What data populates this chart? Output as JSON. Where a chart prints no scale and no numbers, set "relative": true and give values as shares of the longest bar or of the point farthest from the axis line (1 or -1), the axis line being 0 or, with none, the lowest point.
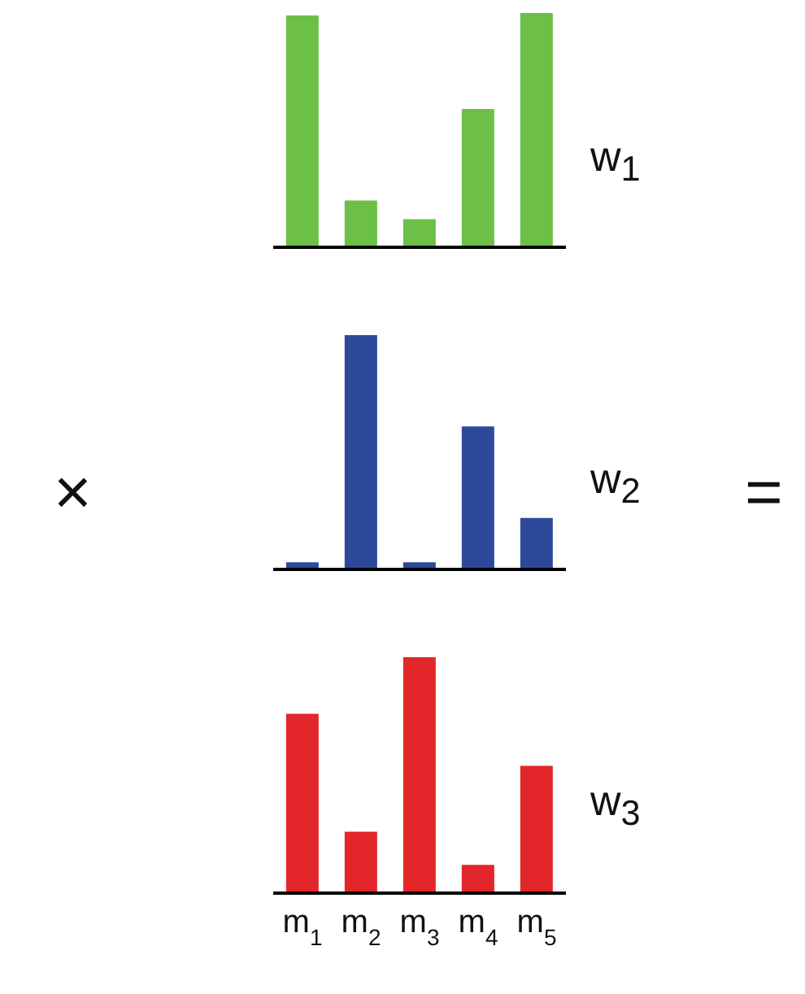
{
  "chart_data": [
    {
      "type": "bar",
      "relative": true,
      "categories": [
        null,
        null,
        null,
        null,
        null
      ],
      "series": [
        {
          "name": "w$_{1}$",
          "color": "#6cbf47",
          "values": [
            0.99,
            0.2,
            0.12,
            0.59,
            1
          ]
        }
      ]
    },
    {
      "type": "bar",
      "relative": true,
      "categories": [
        null,
        null,
        null,
        null,
        null
      ],
      "annotations": [
        "×",
        "="
      ],
      "series": [
        {
          "name": "w$_{2}$",
          "color": "#2d4a9a",
          "values": [
            0.03,
            1,
            0.03,
            0.61,
            0.22
          ]
        }
      ]
    },
    {
      "type": "bar",
      "relative": true,
      "categories": [
        "m$_{1}$",
        "m$_{2}$",
        "m$_{3}$",
        "m$_{4}$",
        "m$_{5}$"
      ],
      "series": [
        {
          "name": "w$_{3}$",
          "color": "#e3262a",
          "values": [
            0.76,
            0.26,
            1,
            0.12,
            0.54
          ]
        }
      ]
    }
  ]
}
